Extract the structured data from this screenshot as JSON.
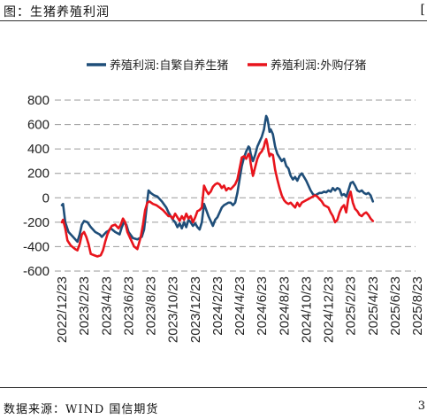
{
  "header": {
    "title": "图：生猪养殖利润",
    "corner": "["
  },
  "footer": {
    "source": "数据来源：WIND 国信期货",
    "corner": "3"
  },
  "chart_data": {
    "type": "line",
    "title": "",
    "xlabel": "",
    "ylabel": "",
    "ylim": [
      -600,
      800
    ],
    "yticks": [
      800,
      600,
      400,
      200,
      0,
      -200,
      -400,
      -600
    ],
    "xtick_labels": [
      "2022/12/23",
      "2023/2/23",
      "2023/4/23",
      "2023/6/23",
      "2023/8/23",
      "2023/10/23",
      "2023/12/23",
      "2024/2/23",
      "2024/4/23",
      "2024/6/23",
      "2024/8/23",
      "2024/10/23",
      "2024/12/23",
      "2025/2/23",
      "2025/4/23",
      "2025/6/23",
      "2025/8/23"
    ],
    "grid": true,
    "legend_position": "top",
    "series": [
      {
        "name": "养殖利润:自繁自养生猪",
        "color": "#1f4e79",
        "points": [
          [
            0,
            -60
          ],
          [
            0.05,
            -50
          ],
          [
            0.15,
            -200
          ],
          [
            0.3,
            -280
          ],
          [
            0.5,
            -320
          ],
          [
            0.7,
            -360
          ],
          [
            0.8,
            -300
          ],
          [
            0.9,
            -220
          ],
          [
            1.0,
            -190
          ],
          [
            1.15,
            -200
          ],
          [
            1.3,
            -240
          ],
          [
            1.5,
            -280
          ],
          [
            1.7,
            -300
          ],
          [
            1.8,
            -320
          ],
          [
            1.9,
            -300
          ],
          [
            2.0,
            -280
          ],
          [
            2.1,
            -270
          ],
          [
            2.2,
            -250
          ],
          [
            2.4,
            -280
          ],
          [
            2.6,
            -300
          ],
          [
            2.7,
            -240
          ],
          [
            2.8,
            -200
          ],
          [
            2.9,
            -220
          ],
          [
            3.0,
            -280
          ],
          [
            3.2,
            -330
          ],
          [
            3.4,
            -340
          ],
          [
            3.6,
            -320
          ],
          [
            3.7,
            -260
          ],
          [
            3.8,
            -100
          ],
          [
            3.9,
            60
          ],
          [
            4.0,
            40
          ],
          [
            4.15,
            20
          ],
          [
            4.3,
            10
          ],
          [
            4.5,
            -30
          ],
          [
            4.7,
            -80
          ],
          [
            4.8,
            -120
          ],
          [
            4.9,
            -150
          ],
          [
            5.0,
            -180
          ],
          [
            5.1,
            -200
          ],
          [
            5.2,
            -240
          ],
          [
            5.3,
            -210
          ],
          [
            5.4,
            -250
          ],
          [
            5.5,
            -200
          ],
          [
            5.6,
            -240
          ],
          [
            5.7,
            -180
          ],
          [
            5.8,
            -200
          ],
          [
            5.9,
            -230
          ],
          [
            6.0,
            -210
          ],
          [
            6.1,
            -240
          ],
          [
            6.2,
            -260
          ],
          [
            6.3,
            -200
          ],
          [
            6.4,
            -50
          ],
          [
            6.5,
            -100
          ],
          [
            6.6,
            -150
          ],
          [
            6.7,
            -190
          ],
          [
            6.8,
            -230
          ],
          [
            6.9,
            -180
          ],
          [
            7.0,
            -160
          ],
          [
            7.1,
            -120
          ],
          [
            7.2,
            -80
          ],
          [
            7.3,
            -60
          ],
          [
            7.4,
            -50
          ],
          [
            7.5,
            -40
          ],
          [
            7.6,
            -40
          ],
          [
            7.7,
            -60
          ],
          [
            7.8,
            -40
          ],
          [
            7.9,
            40
          ],
          [
            8.0,
            150
          ],
          [
            8.1,
            260
          ],
          [
            8.2,
            330
          ],
          [
            8.3,
            380
          ],
          [
            8.4,
            420
          ],
          [
            8.45,
            410
          ],
          [
            8.5,
            360
          ],
          [
            8.6,
            300
          ],
          [
            8.7,
            350
          ],
          [
            8.8,
            420
          ],
          [
            8.9,
            460
          ],
          [
            9.0,
            500
          ],
          [
            9.1,
            560
          ],
          [
            9.15,
            620
          ],
          [
            9.2,
            670
          ],
          [
            9.25,
            650
          ],
          [
            9.3,
            600
          ],
          [
            9.35,
            540
          ],
          [
            9.4,
            560
          ],
          [
            9.5,
            520
          ],
          [
            9.6,
            420
          ],
          [
            9.7,
            360
          ],
          [
            9.8,
            330
          ],
          [
            9.9,
            300
          ],
          [
            10.0,
            320
          ],
          [
            10.1,
            260
          ],
          [
            10.2,
            240
          ],
          [
            10.3,
            180
          ],
          [
            10.4,
            150
          ],
          [
            10.5,
            170
          ],
          [
            10.6,
            140
          ],
          [
            10.7,
            180
          ],
          [
            10.8,
            200
          ],
          [
            10.9,
            170
          ],
          [
            11.0,
            140
          ],
          [
            11.1,
            100
          ],
          [
            11.2,
            60
          ],
          [
            11.3,
            30
          ],
          [
            11.4,
            20
          ],
          [
            11.5,
            30
          ],
          [
            11.6,
            40
          ],
          [
            11.7,
            40
          ],
          [
            11.8,
            50
          ],
          [
            11.9,
            45
          ],
          [
            12.0,
            60
          ],
          [
            12.1,
            50
          ],
          [
            12.2,
            80
          ],
          [
            12.3,
            60
          ],
          [
            12.4,
            80
          ],
          [
            12.5,
            70
          ],
          [
            12.6,
            20
          ],
          [
            12.7,
            30
          ],
          [
            12.8,
            10
          ],
          [
            12.9,
            60
          ],
          [
            13.0,
            120
          ],
          [
            13.1,
            130
          ],
          [
            13.2,
            100
          ],
          [
            13.3,
            60
          ],
          [
            13.4,
            50
          ],
          [
            13.5,
            60
          ],
          [
            13.6,
            40
          ],
          [
            13.7,
            30
          ],
          [
            13.8,
            40
          ],
          [
            13.9,
            20
          ],
          [
            14.0,
            -30
          ]
        ]
      },
      {
        "name": "养殖利润:外购仔猪",
        "color": "#e8141c",
        "points": [
          [
            0,
            -200
          ],
          [
            0.05,
            -180
          ],
          [
            0.15,
            -250
          ],
          [
            0.25,
            -350
          ],
          [
            0.4,
            -390
          ],
          [
            0.6,
            -420
          ],
          [
            0.7,
            -430
          ],
          [
            0.8,
            -380
          ],
          [
            0.9,
            -300
          ],
          [
            1.0,
            -280
          ],
          [
            1.1,
            -320
          ],
          [
            1.2,
            -380
          ],
          [
            1.3,
            -460
          ],
          [
            1.45,
            -470
          ],
          [
            1.6,
            -480
          ],
          [
            1.75,
            -470
          ],
          [
            1.85,
            -430
          ],
          [
            1.95,
            -360
          ],
          [
            2.05,
            -300
          ],
          [
            2.15,
            -260
          ],
          [
            2.25,
            -230
          ],
          [
            2.4,
            -220
          ],
          [
            2.55,
            -250
          ],
          [
            2.65,
            -220
          ],
          [
            2.75,
            -170
          ],
          [
            2.85,
            -200
          ],
          [
            2.95,
            -280
          ],
          [
            3.1,
            -340
          ],
          [
            3.25,
            -400
          ],
          [
            3.4,
            -420
          ],
          [
            3.55,
            -320
          ],
          [
            3.65,
            -220
          ],
          [
            3.75,
            -100
          ],
          [
            3.85,
            -40
          ],
          [
            3.95,
            -30
          ],
          [
            4.1,
            -50
          ],
          [
            4.25,
            -60
          ],
          [
            4.4,
            -80
          ],
          [
            4.55,
            -100
          ],
          [
            4.7,
            -130
          ],
          [
            4.8,
            -150
          ],
          [
            4.9,
            -150
          ],
          [
            5.0,
            -170
          ],
          [
            5.1,
            -130
          ],
          [
            5.2,
            -160
          ],
          [
            5.3,
            -190
          ],
          [
            5.4,
            -150
          ],
          [
            5.5,
            -180
          ],
          [
            5.6,
            -130
          ],
          [
            5.7,
            -170
          ],
          [
            5.8,
            -150
          ],
          [
            5.9,
            -200
          ],
          [
            6.0,
            -160
          ],
          [
            6.1,
            -110
          ],
          [
            6.2,
            -100
          ],
          [
            6.3,
            -80
          ],
          [
            6.4,
            100
          ],
          [
            6.5,
            60
          ],
          [
            6.6,
            30
          ],
          [
            6.7,
            50
          ],
          [
            6.8,
            90
          ],
          [
            6.9,
            110
          ],
          [
            7.0,
            120
          ],
          [
            7.1,
            110
          ],
          [
            7.2,
            80
          ],
          [
            7.3,
            100
          ],
          [
            7.4,
            60
          ],
          [
            7.5,
            80
          ],
          [
            7.6,
            70
          ],
          [
            7.7,
            90
          ],
          [
            7.8,
            110
          ],
          [
            7.9,
            150
          ],
          [
            8.0,
            240
          ],
          [
            8.1,
            330
          ],
          [
            8.2,
            340
          ],
          [
            8.3,
            320
          ],
          [
            8.4,
            360
          ],
          [
            8.45,
            350
          ],
          [
            8.5,
            280
          ],
          [
            8.6,
            180
          ],
          [
            8.7,
            250
          ],
          [
            8.8,
            320
          ],
          [
            8.9,
            360
          ],
          [
            9.0,
            380
          ],
          [
            9.1,
            420
          ],
          [
            9.15,
            460
          ],
          [
            9.2,
            480
          ],
          [
            9.25,
            440
          ],
          [
            9.3,
            380
          ],
          [
            9.35,
            340
          ],
          [
            9.4,
            360
          ],
          [
            9.5,
            350
          ],
          [
            9.6,
            230
          ],
          [
            9.7,
            150
          ],
          [
            9.8,
            80
          ],
          [
            9.9,
            20
          ],
          [
            10.0,
            -20
          ],
          [
            10.1,
            -40
          ],
          [
            10.2,
            -50
          ],
          [
            10.3,
            -40
          ],
          [
            10.4,
            -60
          ],
          [
            10.5,
            -80
          ],
          [
            10.6,
            -40
          ],
          [
            10.7,
            -70
          ],
          [
            10.8,
            -40
          ],
          [
            10.9,
            -30
          ],
          [
            11.0,
            -20
          ],
          [
            11.1,
            -10
          ],
          [
            11.2,
            0
          ],
          [
            11.3,
            10
          ],
          [
            11.4,
            20
          ],
          [
            11.5,
            10
          ],
          [
            11.6,
            -10
          ],
          [
            11.7,
            -30
          ],
          [
            11.8,
            -60
          ],
          [
            11.9,
            -70
          ],
          [
            12.0,
            -80
          ],
          [
            12.1,
            -120
          ],
          [
            12.2,
            -150
          ],
          [
            12.3,
            -200
          ],
          [
            12.4,
            -180
          ],
          [
            12.5,
            -120
          ],
          [
            12.6,
            -80
          ],
          [
            12.7,
            -60
          ],
          [
            12.8,
            -120
          ],
          [
            12.9,
            0
          ],
          [
            13.0,
            50
          ],
          [
            13.1,
            -40
          ],
          [
            13.2,
            -90
          ],
          [
            13.3,
            -110
          ],
          [
            13.4,
            -140
          ],
          [
            13.5,
            -150
          ],
          [
            13.6,
            -130
          ],
          [
            13.7,
            -120
          ],
          [
            13.8,
            -140
          ],
          [
            13.9,
            -170
          ],
          [
            14.0,
            -190
          ]
        ]
      }
    ]
  }
}
